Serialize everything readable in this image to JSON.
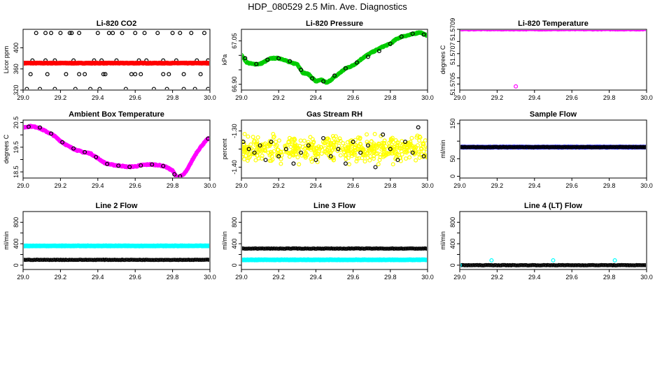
{
  "page": {
    "title": "HDP_080529  2.5 Min. Ave. Diagnostics"
  },
  "colors": {
    "black": "#000000",
    "red": "#ff0000",
    "green": "#00cc00",
    "magenta": "#ff00ff",
    "yellow": "#ffff00",
    "blue": "#0000ff",
    "cyan": "#00ffff"
  },
  "chart_data": [
    {
      "type": "scatter",
      "title": "Li-820 CO2",
      "xlabel": "",
      "ylabel": "Licor ppm",
      "xlim": [
        29.0,
        30.0
      ],
      "ylim": [
        320,
        435
      ],
      "xticks": [
        29.0,
        29.2,
        29.4,
        29.6,
        29.8,
        30.0
      ],
      "xtick_labels": [
        "29.0",
        "29.2",
        "29.4",
        "29.6",
        "29.8",
        "30.0"
      ],
      "yticks": [
        320,
        360,
        400
      ],
      "ytick_labels": [
        "320",
        "360",
        "400"
      ],
      "series": [
        {
          "name": "scatter",
          "color": "#000000",
          "marker": "open",
          "x": [
            29.02,
            29.04,
            29.05,
            29.07,
            29.09,
            29.12,
            29.15,
            29.17,
            29.2,
            29.23,
            29.25,
            29.26,
            29.28,
            29.3,
            29.33,
            29.36,
            29.38,
            29.4,
            29.41,
            29.43,
            29.46,
            29.48,
            29.5,
            29.53,
            29.55,
            29.58,
            29.6,
            29.63,
            29.65,
            29.66,
            29.7,
            29.72,
            29.75,
            29.77,
            29.8,
            29.82,
            29.84,
            29.86,
            29.9,
            29.92,
            29.95,
            29.97,
            29.99,
            29.12,
            29.17,
            29.3,
            29.42,
            29.6,
            29.75,
            29.86,
            29.99,
            29.13,
            29.27,
            29.44,
            29.62,
            29.78,
            29.93
          ],
          "y": [
            322,
            350,
            376,
            428,
            322,
            428,
            428,
            322,
            428,
            350,
            428,
            428,
            322,
            428,
            350,
            322,
            376,
            428,
            322,
            350,
            428,
            428,
            376,
            428,
            322,
            350,
            428,
            350,
            428,
            376,
            322,
            428,
            350,
            322,
            428,
            376,
            428,
            350,
            428,
            322,
            350,
            428,
            322,
            376,
            376,
            350,
            376,
            350,
            376,
            322,
            376,
            350,
            376,
            350,
            376,
            350,
            376
          ]
        },
        {
          "name": "average",
          "color": "#ff0000",
          "marker": "filled",
          "value": 371
        }
      ]
    },
    {
      "type": "scatter",
      "title": "Li-820 Pressure",
      "xlabel": "",
      "ylabel": "kPa",
      "xlim": [
        29.0,
        30.0
      ],
      "ylim": [
        66.88,
        67.09
      ],
      "xticks": [
        29.0,
        29.2,
        29.4,
        29.6,
        29.8,
        30.0
      ],
      "xtick_labels": [
        "29.0",
        "29.2",
        "29.4",
        "29.6",
        "29.8",
        "30.0"
      ],
      "yticks": [
        66.9,
        66.95,
        67.0,
        67.05
      ],
      "ytick_labels": [
        "66.90",
        "",
        "",
        "67.05"
      ],
      "series": [
        {
          "name": "trend",
          "color": "#00cc00",
          "marker": "open",
          "x": [
            29.0,
            29.03,
            29.06,
            29.1,
            29.13,
            29.16,
            29.2,
            29.23,
            29.26,
            29.3,
            29.33,
            29.36,
            29.4,
            29.43,
            29.46,
            29.5,
            29.53,
            29.56,
            29.6,
            29.63,
            29.66,
            29.7,
            29.73,
            29.76,
            29.8,
            29.83,
            29.86,
            29.9,
            29.93,
            29.96,
            29.99
          ],
          "y": [
            67.0,
            66.975,
            66.97,
            66.97,
            66.98,
            66.99,
            66.99,
            66.985,
            66.975,
            66.97,
            66.94,
            66.935,
            66.91,
            66.915,
            66.905,
            66.925,
            66.94,
            66.955,
            66.965,
            66.98,
            66.995,
            67.01,
            67.02,
            67.03,
            67.04,
            67.055,
            67.065,
            67.07,
            67.075,
            67.08,
            67.07
          ]
        },
        {
          "name": "diagnostic",
          "color": "#000000",
          "marker": "open",
          "x": [
            29.02,
            29.08,
            29.14,
            29.2,
            29.26,
            29.32,
            29.38,
            29.44,
            29.5,
            29.56,
            29.62,
            29.68,
            29.74,
            29.8,
            29.86,
            29.92,
            29.98
          ],
          "y": [
            66.99,
            66.97,
            66.985,
            66.99,
            66.98,
            66.95,
            66.92,
            66.91,
            66.93,
            66.955,
            66.975,
            66.995,
            67.015,
            67.04,
            67.065,
            67.075,
            67.072
          ]
        }
      ]
    },
    {
      "type": "scatter",
      "title": "Li-820 Temperature",
      "xlabel": "",
      "ylabel": "degrees C",
      "xlim": [
        29.0,
        30.0
      ],
      "ylim": [
        51.5704,
        51.5709
      ],
      "xticks": [
        29.0,
        29.2,
        29.4,
        29.6,
        29.8,
        30.0
      ],
      "xtick_labels": [
        "29.0",
        "29.2",
        "29.4",
        "29.6",
        "29.8",
        "30.0"
      ],
      "yticks": [
        51.57045,
        51.5705,
        51.5706,
        51.5707,
        51.5708,
        51.5709
      ],
      "ytick_labels": [
        "51.5705",
        "",
        "",
        "51.5707",
        "",
        "51.5709"
      ],
      "series": [
        {
          "name": "temperature",
          "color": "#ff00ff",
          "marker": "open",
          "value": 51.5709
        },
        {
          "name": "outlier",
          "color": "#ff00ff",
          "marker": "open",
          "x": [
            29.3
          ],
          "y": [
            51.57043
          ]
        }
      ]
    },
    {
      "type": "scatter",
      "title": "Ambient Box Temperature",
      "xlabel": "",
      "ylabel": "degrees C",
      "xlim": [
        29.0,
        30.0
      ],
      "ylim": [
        18.25,
        20.6
      ],
      "xticks": [
        29.0,
        29.2,
        29.4,
        29.6,
        29.8,
        30.0
      ],
      "xtick_labels": [
        "29.0",
        "29.2",
        "29.4",
        "29.6",
        "29.8",
        "30.0"
      ],
      "yticks": [
        18.5,
        19.0,
        19.5,
        20.0,
        20.5
      ],
      "ytick_labels": [
        "18.5",
        "",
        "19.5",
        "",
        "20.5"
      ],
      "series": [
        {
          "name": "temperature",
          "color": "#ff00ff",
          "marker": "filled",
          "x": [
            29.0,
            29.04,
            29.08,
            29.12,
            29.16,
            29.2,
            29.24,
            29.28,
            29.32,
            29.36,
            29.4,
            29.44,
            29.48,
            29.52,
            29.56,
            29.6,
            29.64,
            29.68,
            29.72,
            29.76,
            29.8,
            29.82,
            29.84,
            29.86,
            29.88,
            29.9,
            29.93,
            29.96,
            29.99
          ],
          "y": [
            20.3,
            20.35,
            20.3,
            20.15,
            20.0,
            19.75,
            19.55,
            19.4,
            19.3,
            19.25,
            19.05,
            18.85,
            18.78,
            18.75,
            18.7,
            18.72,
            18.78,
            18.8,
            18.78,
            18.72,
            18.55,
            18.3,
            18.3,
            18.4,
            18.6,
            18.9,
            19.3,
            19.6,
            19.85
          ]
        },
        {
          "name": "diagnostic",
          "color": "#000000",
          "marker": "open",
          "x": [
            29.03,
            29.09,
            29.15,
            29.21,
            29.27,
            29.33,
            29.39,
            29.45,
            29.51,
            29.57,
            29.63,
            29.69,
            29.75,
            29.81,
            29.84,
            29.99
          ],
          "y": [
            20.33,
            20.3,
            20.05,
            19.7,
            19.45,
            19.3,
            19.1,
            18.82,
            18.75,
            18.7,
            18.76,
            18.8,
            18.74,
            18.4,
            18.32,
            19.85
          ]
        }
      ]
    },
    {
      "type": "scatter",
      "title": "Gas Stream RH",
      "xlabel": "",
      "ylabel": "percent",
      "xlim": [
        29.0,
        30.0
      ],
      "ylim": [
        -1.43,
        -1.27
      ],
      "xticks": [
        29.0,
        29.2,
        29.4,
        29.6,
        29.8,
        30.0
      ],
      "xtick_labels": [
        "29.0",
        "29.2",
        "29.4",
        "29.6",
        "29.8",
        "30.0"
      ],
      "yticks": [
        -1.4,
        -1.35,
        -1.3
      ],
      "ytick_labels": [
        "-1.40",
        "",
        "-1.30"
      ],
      "series": [
        {
          "name": "humidity",
          "color": "#ffff00",
          "marker": "open",
          "range": [
            -1.42,
            -1.28
          ]
        },
        {
          "name": "diagnostic",
          "color": "#000000",
          "marker": "open",
          "x": [
            29.01,
            29.04,
            29.07,
            29.1,
            29.13,
            29.16,
            29.2,
            29.24,
            29.28,
            29.32,
            29.36,
            29.4,
            29.44,
            29.48,
            29.52,
            29.56,
            29.6,
            29.64,
            29.68,
            29.72,
            29.76,
            29.8,
            29.84,
            29.88,
            29.92,
            29.95,
            29.98
          ],
          "y": [
            -1.33,
            -1.35,
            -1.36,
            -1.34,
            -1.38,
            -1.33,
            -1.37,
            -1.35,
            -1.39,
            -1.36,
            -1.34,
            -1.38,
            -1.32,
            -1.37,
            -1.35,
            -1.39,
            -1.33,
            -1.36,
            -1.34,
            -1.4,
            -1.31,
            -1.35,
            -1.38,
            -1.33,
            -1.36,
            -1.29,
            -1.37
          ]
        }
      ]
    },
    {
      "type": "scatter",
      "title": "Sample Flow",
      "xlabel": "",
      "ylabel": "ml/min",
      "xlim": [
        29.0,
        30.0
      ],
      "ylim": [
        -5,
        160
      ],
      "xticks": [
        29.0,
        29.2,
        29.4,
        29.6,
        29.8,
        30.0
      ],
      "xtick_labels": [
        "29.0",
        "29.2",
        "29.4",
        "29.6",
        "29.8",
        "30.0"
      ],
      "yticks": [
        0,
        50,
        100,
        150
      ],
      "ytick_labels": [
        "0",
        "50",
        "",
        "150"
      ],
      "series": [
        {
          "name": "flow",
          "color": "#0000ff",
          "marker": "filled",
          "value": 83
        },
        {
          "name": "diagnostic",
          "color": "#000000",
          "marker": "open",
          "value": 83
        }
      ]
    },
    {
      "type": "scatter",
      "title": "Line 2 Flow",
      "xlabel": "",
      "ylabel": "ml/min",
      "xlim": [
        29.0,
        30.0
      ],
      "ylim": [
        -80,
        1000
      ],
      "xticks": [
        29.0,
        29.2,
        29.4,
        29.6,
        29.8,
        30.0
      ],
      "xtick_labels": [
        "29.0",
        "29.2",
        "29.4",
        "29.6",
        "29.8",
        "30.0"
      ],
      "yticks": [
        0,
        200,
        400,
        600,
        800
      ],
      "ytick_labels": [
        "0",
        "",
        "400",
        "",
        "800"
      ],
      "series": [
        {
          "name": "flow",
          "color": "#00ffff",
          "marker": "filled",
          "value": 360
        },
        {
          "name": "diagnostic",
          "color": "#000000",
          "marker": "open",
          "value": 100
        }
      ]
    },
    {
      "type": "scatter",
      "title": "Line 3 Flow",
      "xlabel": "",
      "ylabel": "ml/min",
      "xlim": [
        29.0,
        30.0
      ],
      "ylim": [
        -80,
        1000
      ],
      "xticks": [
        29.0,
        29.2,
        29.4,
        29.6,
        29.8,
        30.0
      ],
      "xtick_labels": [
        "29.0",
        "29.2",
        "29.4",
        "29.6",
        "29.8",
        "30.0"
      ],
      "yticks": [
        0,
        200,
        400,
        600,
        800
      ],
      "ytick_labels": [
        "0",
        "",
        "400",
        "",
        "800"
      ],
      "series": [
        {
          "name": "flow",
          "color": "#00ffff",
          "marker": "filled",
          "value": 100
        },
        {
          "name": "diagnostic",
          "color": "#000000",
          "marker": "open",
          "value": 310
        }
      ]
    },
    {
      "type": "scatter",
      "title": "Line 4 (LT) Flow",
      "xlabel": "",
      "ylabel": "ml/min",
      "xlim": [
        29.0,
        30.0
      ],
      "ylim": [
        -80,
        1000
      ],
      "xticks": [
        29.0,
        29.2,
        29.4,
        29.6,
        29.8,
        30.0
      ],
      "xtick_labels": [
        "29.0",
        "29.2",
        "29.4",
        "29.6",
        "29.8",
        "30.0"
      ],
      "yticks": [
        0,
        200,
        400,
        600,
        800
      ],
      "ytick_labels": [
        "0",
        "",
        "400",
        "",
        "800"
      ],
      "series": [
        {
          "name": "flow",
          "color": "#000000",
          "marker": "open",
          "value": 0
        },
        {
          "name": "spikes",
          "color": "#00ffff",
          "marker": "open",
          "x": [
            29.0,
            29.17,
            29.5,
            29.83
          ],
          "y": [
            0,
            90,
            90,
            90
          ]
        }
      ]
    }
  ]
}
